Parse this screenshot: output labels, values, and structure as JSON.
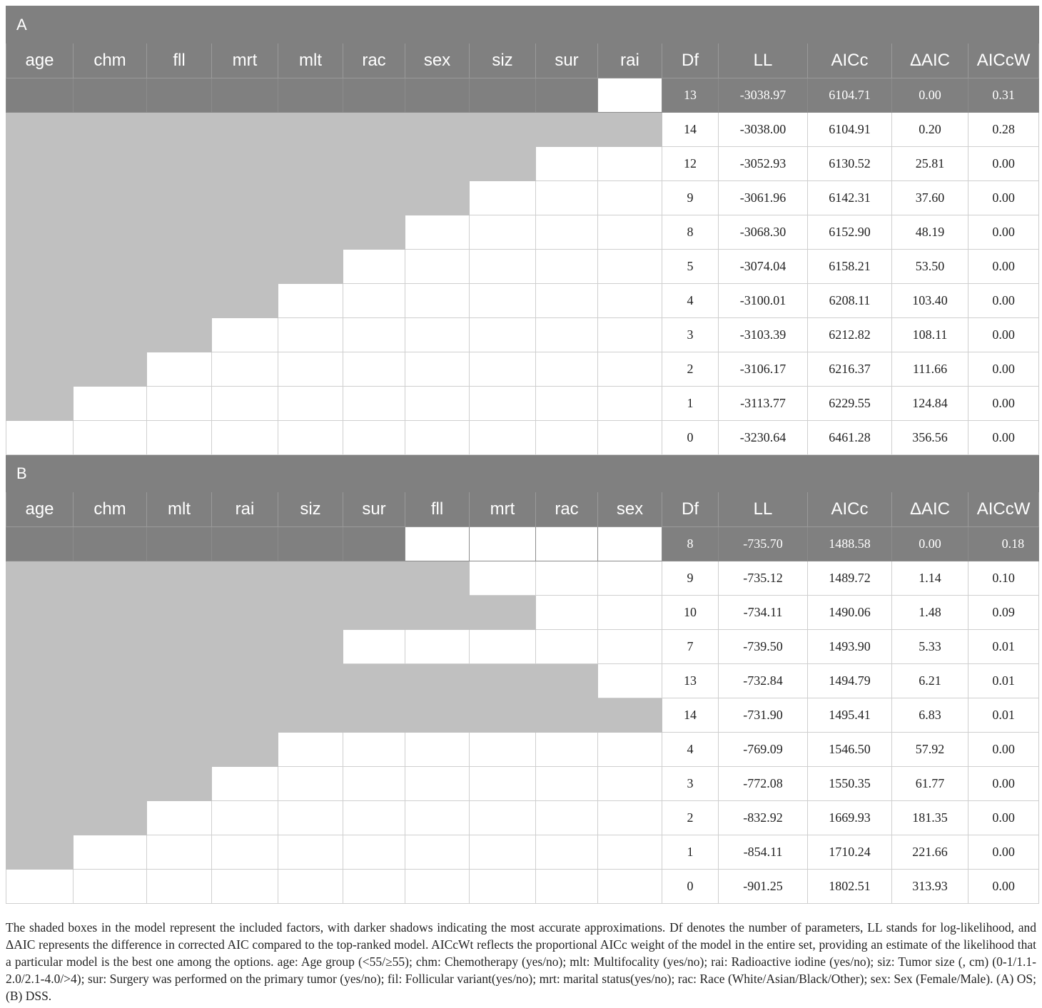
{
  "panels": [
    {
      "label": "A",
      "factors": [
        "age",
        "chm",
        "fll",
        "mrt",
        "mlt",
        "rac",
        "sex",
        "siz",
        "sur",
        "rai"
      ],
      "stats": [
        "Df",
        "LL",
        "AICc",
        "ΔAIC",
        "AICcW"
      ],
      "rows": [
        {
          "included": [
            1,
            1,
            1,
            1,
            1,
            1,
            1,
            1,
            1,
            0
          ],
          "df": "13",
          "ll": "-3038.97",
          "aicc": "6104.71",
          "daic": "0.00",
          "w": "0.31",
          "top": true
        },
        {
          "included": [
            1,
            1,
            1,
            1,
            1,
            1,
            1,
            1,
            1,
            1
          ],
          "df": "14",
          "ll": "-3038.00",
          "aicc": "6104.91",
          "daic": "0.20",
          "w": "0.28"
        },
        {
          "included": [
            1,
            1,
            1,
            1,
            1,
            1,
            1,
            1,
            0,
            0
          ],
          "df": "12",
          "ll": "-3052.93",
          "aicc": "6130.52",
          "daic": "25.81",
          "w": "0.00"
        },
        {
          "included": [
            1,
            1,
            1,
            1,
            1,
            1,
            1,
            0,
            0,
            0
          ],
          "df": "9",
          "ll": "-3061.96",
          "aicc": "6142.31",
          "daic": "37.60",
          "w": "0.00"
        },
        {
          "included": [
            1,
            1,
            1,
            1,
            1,
            1,
            0,
            0,
            0,
            0
          ],
          "df": "8",
          "ll": "-3068.30",
          "aicc": "6152.90",
          "daic": "48.19",
          "w": "0.00"
        },
        {
          "included": [
            1,
            1,
            1,
            1,
            1,
            0,
            0,
            0,
            0,
            0
          ],
          "df": "5",
          "ll": "-3074.04",
          "aicc": "6158.21",
          "daic": "53.50",
          "w": "0.00"
        },
        {
          "included": [
            1,
            1,
            1,
            1,
            0,
            0,
            0,
            0,
            0,
            0
          ],
          "df": "4",
          "ll": "-3100.01",
          "aicc": "6208.11",
          "daic": "103.40",
          "w": "0.00"
        },
        {
          "included": [
            1,
            1,
            1,
            0,
            0,
            0,
            0,
            0,
            0,
            0
          ],
          "df": "3",
          "ll": "-3103.39",
          "aicc": "6212.82",
          "daic": "108.11",
          "w": "0.00"
        },
        {
          "included": [
            1,
            1,
            0,
            0,
            0,
            0,
            0,
            0,
            0,
            0
          ],
          "df": "2",
          "ll": "-3106.17",
          "aicc": "6216.37",
          "daic": "111.66",
          "w": "0.00"
        },
        {
          "included": [
            1,
            0,
            0,
            0,
            0,
            0,
            0,
            0,
            0,
            0
          ],
          "df": "1",
          "ll": "-3113.77",
          "aicc": "6229.55",
          "daic": "124.84",
          "w": "0.00"
        },
        {
          "included": [
            0,
            0,
            0,
            0,
            0,
            0,
            0,
            0,
            0,
            0
          ],
          "df": "0",
          "ll": "-3230.64",
          "aicc": "6461.28",
          "daic": "356.56",
          "w": "0.00"
        }
      ]
    },
    {
      "label": "B",
      "factors": [
        "age",
        "chm",
        "mlt",
        "rai",
        "siz",
        "sur",
        "fll",
        "mrt",
        "rac",
        "sex"
      ],
      "stats": [
        "Df",
        "LL",
        "AICc",
        "ΔAIC",
        "AICcW"
      ],
      "rows": [
        {
          "included": [
            1,
            1,
            1,
            1,
            1,
            1,
            0,
            0,
            0,
            0
          ],
          "df": "8",
          "ll": "-735.70",
          "aicc": "1488.58",
          "daic": "0.00",
          "w": "0.18",
          "top": true
        },
        {
          "included": [
            1,
            1,
            1,
            1,
            1,
            1,
            1,
            0,
            0,
            0
          ],
          "df": "9",
          "ll": "-735.12",
          "aicc": "1489.72",
          "daic": "1.14",
          "w": "0.10"
        },
        {
          "included": [
            1,
            1,
            1,
            1,
            1,
            1,
            1,
            1,
            0,
            0
          ],
          "df": "10",
          "ll": "-734.11",
          "aicc": "1490.06",
          "daic": "1.48",
          "w": "0.09"
        },
        {
          "included": [
            1,
            1,
            1,
            1,
            1,
            0,
            0,
            0,
            0,
            0
          ],
          "df": "7",
          "ll": "-739.50",
          "aicc": "1493.90",
          "daic": "5.33",
          "w": "0.01"
        },
        {
          "included": [
            1,
            1,
            1,
            1,
            1,
            1,
            1,
            1,
            1,
            0
          ],
          "df": "13",
          "ll": "-732.84",
          "aicc": "1494.79",
          "daic": "6.21",
          "w": "0.01"
        },
        {
          "included": [
            1,
            1,
            1,
            1,
            1,
            1,
            1,
            1,
            1,
            1
          ],
          "df": "14",
          "ll": "-731.90",
          "aicc": "1495.41",
          "daic": "6.83",
          "w": "0.01"
        },
        {
          "included": [
            1,
            1,
            1,
            1,
            0,
            0,
            0,
            0,
            0,
            0
          ],
          "df": "4",
          "ll": "-769.09",
          "aicc": "1546.50",
          "daic": "57.92",
          "w": "0.00"
        },
        {
          "included": [
            1,
            1,
            1,
            0,
            0,
            0,
            0,
            0,
            0,
            0
          ],
          "df": "3",
          "ll": "-772.08",
          "aicc": "1550.35",
          "daic": "61.77",
          "w": "0.00"
        },
        {
          "included": [
            1,
            1,
            0,
            0,
            0,
            0,
            0,
            0,
            0,
            0
          ],
          "df": "2",
          "ll": "-832.92",
          "aicc": "1669.93",
          "daic": "181.35",
          "w": "0.00"
        },
        {
          "included": [
            1,
            0,
            0,
            0,
            0,
            0,
            0,
            0,
            0,
            0
          ],
          "df": "1",
          "ll": "-854.11",
          "aicc": "1710.24",
          "daic": "221.66",
          "w": "0.00"
        },
        {
          "included": [
            0,
            0,
            0,
            0,
            0,
            0,
            0,
            0,
            0,
            0
          ],
          "df": "0",
          "ll": "-901.25",
          "aicc": "1802.51",
          "daic": "313.93",
          "w": "0.00"
        }
      ]
    }
  ],
  "footnote": "The shaded boxes in the model represent the included factors, with darker shadows indicating the most accurate approximations. Df denotes the number of parameters, LL stands for log-likelihood, and ΔAIC represents the difference in corrected AIC compared to the top-ranked model. AICcWt reflects the proportional AICc weight of the model in the entire set, providing an estimate of the likelihood that a particular model is the best one among the options. age: Age group (<55/≥55); chm: Chemotherapy (yes/no); mlt: Multifocality (yes/no); rai: Radioactive iodine (yes/no); siz: Tumor size (, cm) (0-1/1.1-2.0/2.1-4.0/>4); sur: Surgery was performed on the primary tumor (yes/no); fil: Follicular variant(yes/no); mrt: marital status(yes/no); rac: Race (White/Asian/Black/Other); sex: Sex (Female/Male). (A) OS; (B) DSS."
}
